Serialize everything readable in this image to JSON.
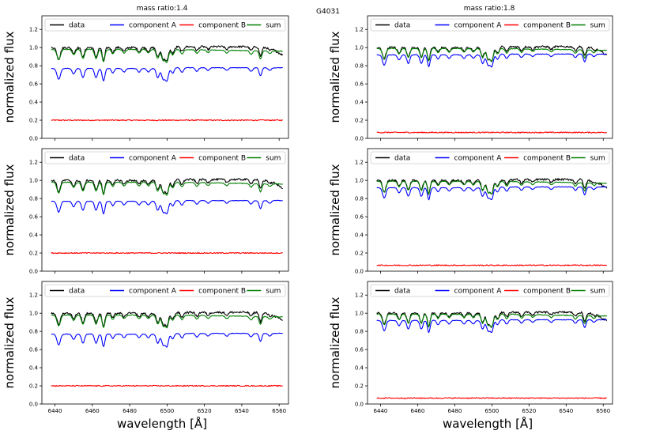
{
  "figure": {
    "suptitle": "G4031",
    "column_titles": [
      "mass ratio:1.4",
      "mass ratio:1.8"
    ],
    "xlabel": "wavelength [Å]",
    "ylabel": "normalized flux",
    "legend": [
      "data",
      "component A",
      "component B",
      "sum"
    ]
  },
  "colors": {
    "data": "#000000",
    "component_a": "#0000ff",
    "component_b": "#ff0000",
    "sum": "#008000"
  },
  "chart_data": {
    "type": "line",
    "layout": "3 rows x 2 columns",
    "xlim": [
      6433,
      6565
    ],
    "ylim": [
      0.0,
      1.35
    ],
    "xticks": [
      6440,
      6460,
      6480,
      6500,
      6520,
      6540,
      6560
    ],
    "yticks": [
      0.0,
      0.2,
      0.4,
      0.6,
      0.8,
      1.0,
      1.2
    ],
    "x_range": [
      6438,
      6562
    ],
    "absorption_lines": [
      {
        "x": 6442,
        "depth": 0.12,
        "width": 0.9
      },
      {
        "x": 6450,
        "depth": 0.06,
        "width": 0.8
      },
      {
        "x": 6455,
        "depth": 0.1,
        "width": 0.8
      },
      {
        "x": 6462,
        "depth": 0.1,
        "width": 0.8
      },
      {
        "x": 6466,
        "depth": 0.14,
        "width": 0.7
      },
      {
        "x": 6471,
        "depth": 0.05,
        "width": 0.7
      },
      {
        "x": 6477,
        "depth": 0.04,
        "width": 0.8
      },
      {
        "x": 6485,
        "depth": 0.04,
        "width": 0.8
      },
      {
        "x": 6490,
        "depth": 0.04,
        "width": 0.8
      },
      {
        "x": 6495,
        "depth": 0.1,
        "width": 0.8
      },
      {
        "x": 6498,
        "depth": 0.12,
        "width": 0.9
      },
      {
        "x": 6500,
        "depth": 0.13,
        "width": 0.8
      },
      {
        "x": 6503,
        "depth": 0.06,
        "width": 0.8
      },
      {
        "x": 6508,
        "depth": 0.05,
        "width": 0.8
      },
      {
        "x": 6516,
        "depth": 0.04,
        "width": 0.8
      },
      {
        "x": 6522,
        "depth": 0.03,
        "width": 0.8
      },
      {
        "x": 6532,
        "depth": 0.03,
        "width": 0.8
      },
      {
        "x": 6545,
        "depth": 0.04,
        "width": 0.8
      },
      {
        "x": 6550,
        "depth": 0.09,
        "width": 0.7
      },
      {
        "x": 6555,
        "depth": 0.03,
        "width": 0.8
      }
    ],
    "panels": [
      {
        "row": 0,
        "col": 0,
        "mass_ratio": 1.4,
        "series": [
          {
            "name": "data",
            "level": 1.0
          },
          {
            "name": "component A",
            "level": 0.77
          },
          {
            "name": "component B",
            "level": 0.2
          },
          {
            "name": "sum",
            "level": 0.98
          }
        ]
      },
      {
        "row": 0,
        "col": 1,
        "mass_ratio": 1.8,
        "series": [
          {
            "name": "data",
            "level": 1.0
          },
          {
            "name": "component A",
            "level": 0.92
          },
          {
            "name": "component B",
            "level": 0.065
          },
          {
            "name": "sum",
            "level": 0.99
          }
        ]
      },
      {
        "row": 1,
        "col": 0,
        "mass_ratio": 1.4,
        "series": [
          {
            "name": "data",
            "level": 1.0
          },
          {
            "name": "component A",
            "level": 0.77
          },
          {
            "name": "component B",
            "level": 0.2
          },
          {
            "name": "sum",
            "level": 0.98
          }
        ]
      },
      {
        "row": 1,
        "col": 1,
        "mass_ratio": 1.8,
        "series": [
          {
            "name": "data",
            "level": 1.0
          },
          {
            "name": "component A",
            "level": 0.92
          },
          {
            "name": "component B",
            "level": 0.065
          },
          {
            "name": "sum",
            "level": 0.99
          }
        ]
      },
      {
        "row": 2,
        "col": 0,
        "mass_ratio": 1.4,
        "series": [
          {
            "name": "data",
            "level": 1.0
          },
          {
            "name": "component A",
            "level": 0.77
          },
          {
            "name": "component B",
            "level": 0.2
          },
          {
            "name": "sum",
            "level": 0.98
          }
        ]
      },
      {
        "row": 2,
        "col": 1,
        "mass_ratio": 1.8,
        "series": [
          {
            "name": "data",
            "level": 1.0
          },
          {
            "name": "component A",
            "level": 0.92
          },
          {
            "name": "component B",
            "level": 0.065
          },
          {
            "name": "sum",
            "level": 0.99
          }
        ]
      }
    ]
  }
}
